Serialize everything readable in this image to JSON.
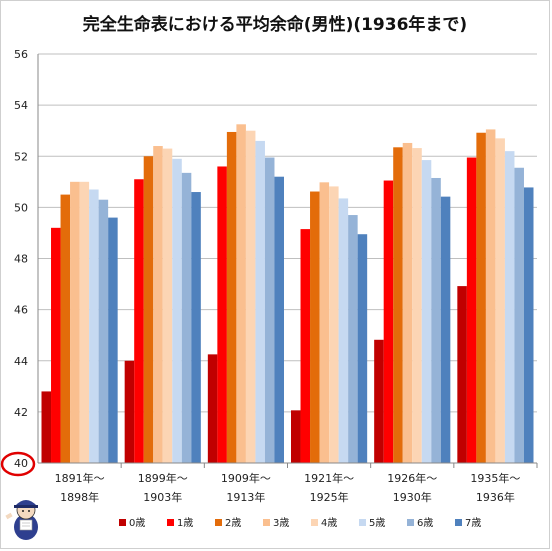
{
  "chart_data": {
    "type": "bar",
    "title": "完全生命表における平均余命(男性)(1936年まで)",
    "xlabel": "",
    "ylabel": "",
    "ylim": [
      40,
      56
    ],
    "yticks": [
      40,
      42,
      44,
      46,
      48,
      50,
      52,
      54,
      56
    ],
    "ytick_labels": [
      "40",
      "42",
      "44",
      "46",
      "48",
      "50",
      "52",
      "54",
      "56"
    ],
    "grid": true,
    "legend_position": "bottom",
    "highlight_tick": "40",
    "categories": [
      [
        "1891年～",
        "1898年"
      ],
      [
        "1899年～",
        "1903年"
      ],
      [
        "1909年～",
        "1913年"
      ],
      [
        "1921年～",
        "1925年"
      ],
      [
        "1926年～",
        "1930年"
      ],
      [
        "1935年～",
        "1936年"
      ]
    ],
    "series": [
      {
        "name": "0歳",
        "color": "#c00000",
        "values": [
          42.8,
          44.0,
          44.25,
          42.06,
          44.82,
          46.92
        ]
      },
      {
        "name": "1歳",
        "color": "#ff0000",
        "values": [
          49.2,
          51.1,
          51.6,
          49.15,
          51.05,
          51.95
        ]
      },
      {
        "name": "2歳",
        "color": "#e36c0a",
        "values": [
          50.5,
          52.0,
          52.95,
          50.62,
          52.35,
          52.92
        ]
      },
      {
        "name": "3歳",
        "color": "#fabf8f",
        "values": [
          51.0,
          52.4,
          53.25,
          50.98,
          52.52,
          53.05
        ]
      },
      {
        "name": "4歳",
        "color": "#fcd5b4",
        "values": [
          51.0,
          52.3,
          53.0,
          50.82,
          52.32,
          52.7
        ]
      },
      {
        "name": "5歳",
        "color": "#c6d9f1",
        "values": [
          50.7,
          51.9,
          52.6,
          50.35,
          51.85,
          52.2
        ]
      },
      {
        "name": "6歳",
        "color": "#95b3d7",
        "values": [
          50.3,
          51.35,
          51.95,
          49.7,
          51.15,
          51.55
        ]
      },
      {
        "name": "7歳",
        "color": "#4f81bd",
        "values": [
          49.6,
          50.6,
          51.2,
          48.95,
          50.42,
          50.78
        ]
      }
    ]
  }
}
